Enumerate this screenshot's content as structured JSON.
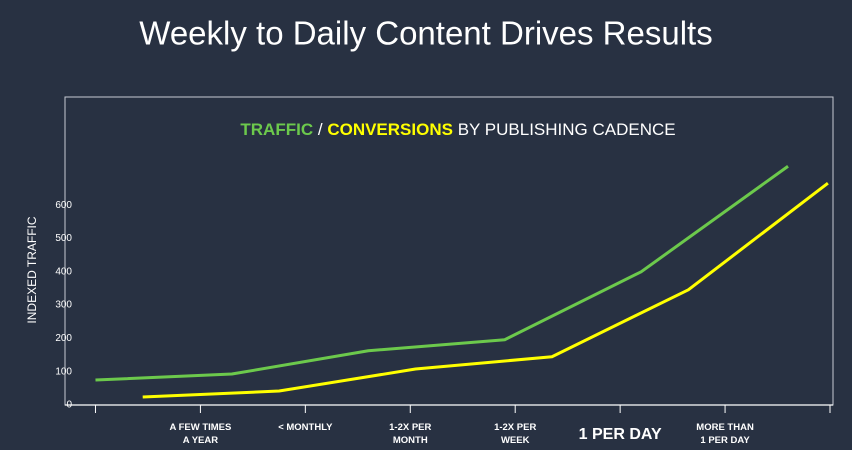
{
  "header": {
    "title": "Weekly to Daily Content Drives Results"
  },
  "chart_data": {
    "type": "line",
    "title_separator": "/",
    "title_rest": "BY PUBLISHING CADENCE",
    "ylabel": "INDEXED TRAFFIC",
    "categories": [
      null,
      [
        "A FEW TIMES",
        "A YEAR"
      ],
      [
        "< MONTHLY"
      ],
      [
        "1-2X PER",
        "MONTH"
      ],
      [
        "1-2X PER",
        "WEEK"
      ],
      [
        "1 PER DAY"
      ],
      [
        "MORE THAN",
        "1 PER DAY"
      ],
      null
    ],
    "emphasized_category": 5,
    "xlim": [
      -0.3,
      7
    ],
    "ylim": [
      0,
      925
    ],
    "yticks": [
      0,
      100,
      200,
      300,
      400,
      500,
      600
    ],
    "series": [
      {
        "name": "TRAFFIC",
        "color": "#6cc94c",
        "x": [
          0,
          1.3,
          2.6,
          3.9,
          5.2,
          6.6
        ],
        "values": [
          75,
          93,
          163,
          196,
          400,
          717
        ]
      },
      {
        "name": "CONVERSIONS",
        "color": "#ffff00",
        "x": [
          0.45,
          1.75,
          3.05,
          4.35,
          5.65,
          6.98
        ],
        "values": [
          24,
          42,
          108,
          145,
          346,
          666
        ]
      }
    ]
  }
}
